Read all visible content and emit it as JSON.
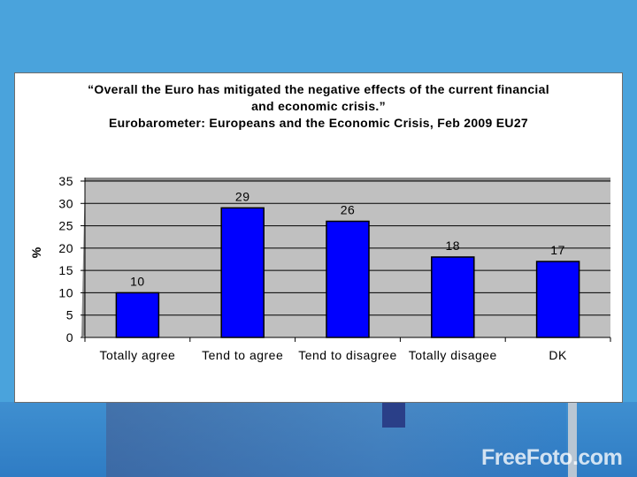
{
  "watermark": "FreeFoto.com",
  "chart_data": {
    "type": "bar",
    "title_lines": [
      "“Overall the Euro has mitigated the negative effects of the current financial",
      "and economic crisis.”",
      "Eurobarometer: Europeans and the Economic Crisis, Feb 2009 EU27"
    ],
    "ylabel": "%",
    "xlabel": "",
    "categories": [
      "Totally agree",
      "Tend to agree",
      "Tend to disagree",
      "Totally disagee",
      "DK"
    ],
    "values": [
      10,
      29,
      26,
      18,
      17
    ],
    "ylim": [
      0,
      35
    ],
    "yticks": [
      0,
      5,
      10,
      15,
      20,
      25,
      30,
      35
    ],
    "grid": true,
    "legend": "none",
    "colors": {
      "bar": "#0000ff",
      "bar_outline": "#000000",
      "plot_background": "#c0c0c0",
      "gridline": "#000000"
    }
  }
}
